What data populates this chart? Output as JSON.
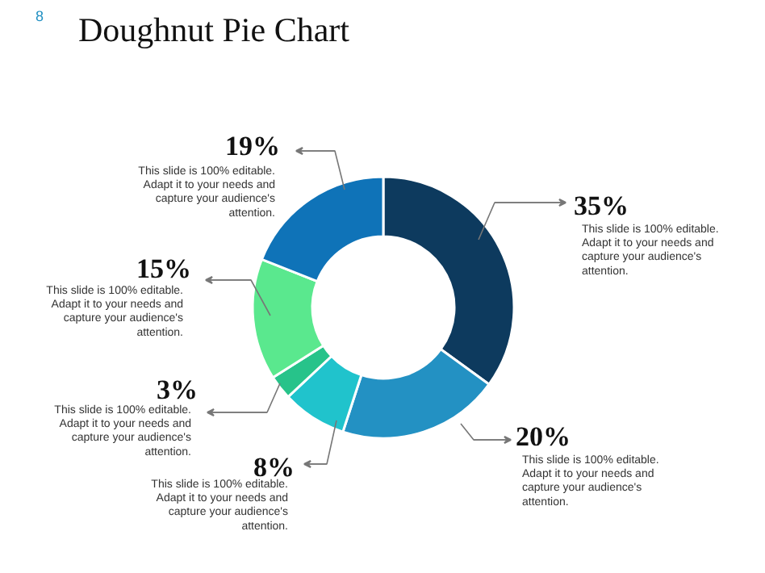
{
  "chart_data": {
    "type": "donut",
    "title": "Doughnut Pie Chart",
    "categories": [
      null,
      null,
      null,
      null,
      null,
      null
    ],
    "values": [
      35,
      20,
      8,
      3,
      15,
      19
    ],
    "colors": [
      "#0d3a5e",
      "#2391c3",
      "#20c3cc",
      "#27c38a",
      "#5ae88e",
      "#0f73b8"
    ],
    "value_labels": [
      "35%",
      "20%",
      "8%",
      "3%",
      "15%",
      "19%"
    ],
    "annotations": [
      "8",
      "This slide is 100% editable. Adapt it to your needs and capture your audience's attention.",
      "This slide is 100% editable. Adapt it to your needs and capture your audience's attention.",
      "This slide is 100% editable. Adapt it to your needs and capture your audience's attention.",
      "This slide is 100% editable. Adapt it to your needs and capture your audience's attention.",
      "This slide is 100% editable. Adapt it to your needs and capture your audience's attention.",
      "This slide is 100% editable. Adapt it to your needs and capture your audience's attention."
    ]
  }
}
